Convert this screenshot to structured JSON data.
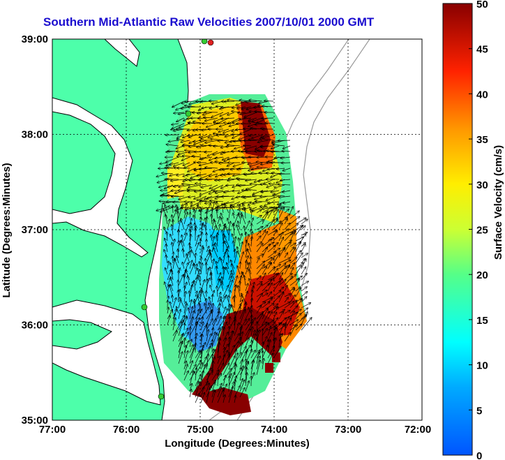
{
  "title": "Southern Mid-Atlantic Raw Velocities 2007/10/01 2000 GMT",
  "axes": {
    "xlabel": "Longitude (Degrees:Minutes)",
    "ylabel": "Latitude (Degrees:Minutes)",
    "xticks": [
      "77:00",
      "76:00",
      "75:00",
      "74:00",
      "73:00",
      "72:00"
    ],
    "yticks": [
      "39:00",
      "38:00",
      "37:00",
      "36:00",
      "35:00"
    ],
    "xlim": [
      -77,
      -72
    ],
    "ylim": [
      35,
      39
    ]
  },
  "colorbar": {
    "label": "Surface Velocity (cm/s)",
    "ticks": [
      "50",
      "45",
      "40",
      "35",
      "30",
      "25",
      "20",
      "15",
      "10",
      "5",
      "0"
    ],
    "range": [
      0,
      50
    ]
  },
  "colors": {
    "land": "#4dffaa",
    "coast": "#000000",
    "title": "#1a0ccf",
    "station_green": "#33cc33",
    "station_red": "#e02020"
  }
}
